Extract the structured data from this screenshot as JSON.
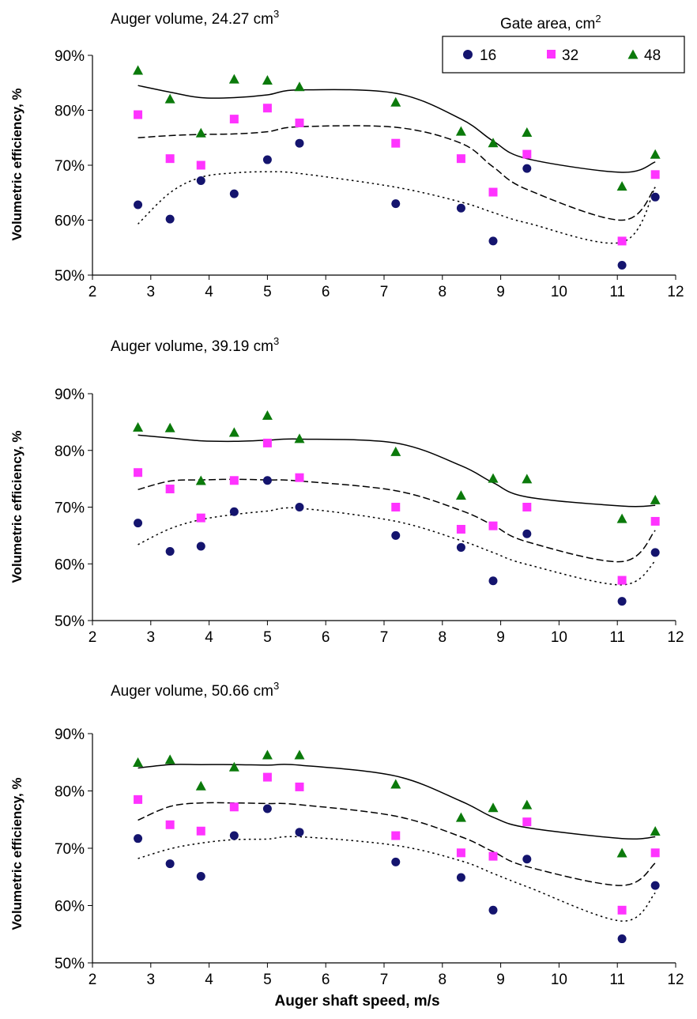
{
  "legend": {
    "title": "Gate area, cm",
    "title_sup": "2",
    "entries": [
      {
        "label": "16",
        "marker": "circle",
        "color": "#14146e"
      },
      {
        "label": "32",
        "marker": "square",
        "color": "#ff33ff"
      },
      {
        "label": "48",
        "marker": "triangle",
        "color": "#0b7a0b"
      }
    ]
  },
  "chart_data": [
    {
      "type": "scatter",
      "title": "Auger volume, 24.27 cm",
      "title_sup": "3",
      "ylabel": "Volumetric efficiency, %",
      "xlabel": "",
      "xlim": [
        2,
        12
      ],
      "ylim": [
        50,
        90
      ],
      "xticks": [
        "2",
        "3",
        "4",
        "5",
        "6",
        "7",
        "8",
        "9",
        "10",
        "11",
        "12"
      ],
      "yticks": [
        "50%",
        "60%",
        "70%",
        "80%",
        "90%"
      ],
      "x": [
        2.78,
        3.33,
        3.86,
        4.43,
        5.0,
        5.55,
        7.2,
        8.32,
        8.87,
        9.45,
        11.08,
        11.65
      ],
      "series": [
        {
          "name": "16",
          "values": [
            62.8,
            60.2,
            67.2,
            64.8,
            71.0,
            74.0,
            63.0,
            62.2,
            56.2,
            69.4,
            51.8,
            64.2
          ],
          "trend_y": [
            59.3,
            65.0,
            67.8,
            68.6,
            68.8,
            68.5,
            66.0,
            63.3,
            61.4,
            59.5,
            56.0,
            66.0
          ]
        },
        {
          "name": "32",
          "values": [
            79.2,
            71.2,
            70.0,
            78.4,
            80.4,
            77.7,
            74.0,
            71.2,
            65.1,
            72.0,
            56.2,
            68.3
          ],
          "trend_y": [
            75.0,
            75.4,
            75.6,
            75.7,
            76.1,
            77.0,
            76.9,
            74.0,
            69.7,
            65.6,
            60.0,
            66.0
          ]
        },
        {
          "name": "48",
          "values": [
            87.2,
            82.0,
            75.8,
            85.6,
            85.4,
            84.2,
            81.4,
            76.1,
            74.0,
            75.9,
            66.1,
            71.9
          ],
          "trend_y": [
            84.5,
            83.3,
            82.3,
            82.3,
            82.8,
            83.7,
            83.1,
            78.4,
            74.4,
            71.2,
            68.7,
            70.6
          ]
        }
      ]
    },
    {
      "type": "scatter",
      "title": "Auger volume, 39.19 cm",
      "title_sup": "3",
      "ylabel": "Volumetric efficiency, %",
      "xlabel": "",
      "xlim": [
        2,
        12
      ],
      "ylim": [
        50,
        90
      ],
      "xticks": [
        "2",
        "3",
        "4",
        "5",
        "6",
        "7",
        "8",
        "9",
        "10",
        "11",
        "12"
      ],
      "yticks": [
        "50%",
        "60%",
        "70%",
        "80%",
        "90%"
      ],
      "x": [
        2.78,
        3.33,
        3.86,
        4.43,
        5.0,
        5.55,
        7.2,
        8.32,
        8.87,
        9.45,
        11.08,
        11.65
      ],
      "series": [
        {
          "name": "16",
          "values": [
            67.2,
            62.2,
            63.1,
            69.2,
            74.7,
            70.0,
            65.0,
            62.9,
            57.0,
            65.3,
            53.4,
            62.0
          ],
          "trend_y": [
            63.4,
            66.2,
            67.8,
            68.7,
            69.3,
            69.8,
            67.5,
            64.1,
            62.0,
            59.9,
            56.3,
            60.5
          ]
        },
        {
          "name": "32",
          "values": [
            76.1,
            73.2,
            68.1,
            74.7,
            81.3,
            75.2,
            70.0,
            66.1,
            66.7,
            70.0,
            57.1,
            67.5
          ],
          "trend_y": [
            73.1,
            74.6,
            74.8,
            74.9,
            74.8,
            74.6,
            72.9,
            69.4,
            66.8,
            63.9,
            60.4,
            65.9
          ]
        },
        {
          "name": "48",
          "values": [
            84.0,
            83.9,
            74.6,
            83.1,
            86.1,
            82.0,
            79.7,
            72.0,
            75.0,
            74.9,
            67.9,
            71.2
          ],
          "trend_y": [
            82.7,
            82.2,
            81.7,
            81.6,
            81.8,
            82.0,
            81.3,
            77.3,
            74.3,
            71.8,
            70.2,
            70.3
          ]
        }
      ]
    },
    {
      "type": "scatter",
      "title": "Auger volume, 50.66  cm",
      "title_sup": "3",
      "ylabel": "Volumetric efficiency, %",
      "xlabel": "Auger shaft speed, m/s",
      "xlim": [
        2,
        12
      ],
      "ylim": [
        50,
        90
      ],
      "xticks": [
        "2",
        "3",
        "4",
        "5",
        "6",
        "7",
        "8",
        "9",
        "10",
        "11",
        "12"
      ],
      "yticks": [
        "50%",
        "60%",
        "70%",
        "80%",
        "90%"
      ],
      "x": [
        2.78,
        3.33,
        3.86,
        4.43,
        5.0,
        5.55,
        7.2,
        8.32,
        8.87,
        9.45,
        11.08,
        11.65
      ],
      "series": [
        {
          "name": "16",
          "values": [
            71.7,
            67.3,
            65.1,
            72.2,
            76.9,
            72.8,
            67.6,
            64.9,
            59.2,
            68.1,
            54.2,
            63.5
          ],
          "trend_y": [
            68.2,
            69.9,
            70.9,
            71.5,
            71.6,
            72.0,
            70.5,
            67.8,
            65.6,
            63.3,
            57.3,
            62.2
          ]
        },
        {
          "name": "32",
          "values": [
            78.5,
            74.1,
            73.0,
            77.2,
            82.4,
            80.7,
            72.2,
            69.2,
            68.6,
            74.6,
            59.2,
            69.2
          ],
          "trend_y": [
            74.9,
            77.3,
            77.9,
            77.9,
            77.8,
            77.6,
            75.6,
            72.0,
            69.4,
            66.8,
            63.5,
            67.4
          ]
        },
        {
          "name": "48",
          "values": [
            84.9,
            85.4,
            80.8,
            84.1,
            86.2,
            86.2,
            81.1,
            75.3,
            77.0,
            77.5,
            69.1,
            72.9
          ],
          "trend_y": [
            84.0,
            84.6,
            84.6,
            84.6,
            84.5,
            84.5,
            82.6,
            78.2,
            75.4,
            73.6,
            71.7,
            72.0
          ]
        }
      ]
    }
  ]
}
